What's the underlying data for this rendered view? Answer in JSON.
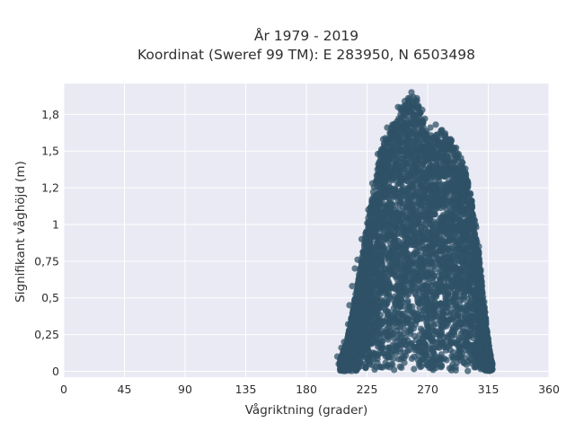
{
  "chart_data": {
    "type": "scatter",
    "title_lines": [
      "År 1979 - 2019",
      "Koordinat (Sweref 99 TM): E 283950, N 6503498"
    ],
    "xlabel": "Vågriktning (grader)",
    "ylabel": "Signifikant våghöjd (m)",
    "xlim": [
      0,
      360
    ],
    "ylim": [
      -0.04,
      1.96
    ],
    "x_ticks": [
      {
        "value": 0,
        "label": "0"
      },
      {
        "value": 45,
        "label": "45"
      },
      {
        "value": 90,
        "label": "90"
      },
      {
        "value": 135,
        "label": "135"
      },
      {
        "value": 180,
        "label": "180"
      },
      {
        "value": 225,
        "label": "225"
      },
      {
        "value": 270,
        "label": "270"
      },
      {
        "value": 315,
        "label": "315"
      },
      {
        "value": 360,
        "label": "360"
      }
    ],
    "y_ticks": [
      {
        "value": 0,
        "label": "0"
      },
      {
        "value": 0.25,
        "label": "0,25"
      },
      {
        "value": 0.5,
        "label": "0,5"
      },
      {
        "value": 0.75,
        "label": "0,75"
      },
      {
        "value": 1,
        "label": "1"
      },
      {
        "value": 1.25,
        "label": "1,2"
      },
      {
        "value": 1.5,
        "label": "1,5"
      },
      {
        "value": 1.75,
        "label": "1,8"
      }
    ],
    "grid": true,
    "legend": "none",
    "marker_color": "#2f5167",
    "plot_background": "#e9eaf3",
    "envelope": [
      {
        "direction": 205,
        "max_height": 0.08
      },
      {
        "direction": 210,
        "max_height": 0.2
      },
      {
        "direction": 215,
        "max_height": 0.45
      },
      {
        "direction": 220,
        "max_height": 0.72
      },
      {
        "direction": 225,
        "max_height": 1.0
      },
      {
        "direction": 230,
        "max_height": 1.25
      },
      {
        "direction": 235,
        "max_height": 1.5
      },
      {
        "direction": 240,
        "max_height": 1.62
      },
      {
        "direction": 245,
        "max_height": 1.7
      },
      {
        "direction": 250,
        "max_height": 1.8
      },
      {
        "direction": 255,
        "max_height": 1.86
      },
      {
        "direction": 258,
        "max_height": 1.88
      },
      {
        "direction": 262,
        "max_height": 1.85
      },
      {
        "direction": 265,
        "max_height": 1.75
      },
      {
        "direction": 270,
        "max_height": 1.62
      },
      {
        "direction": 275,
        "max_height": 1.6
      },
      {
        "direction": 280,
        "max_height": 1.65
      },
      {
        "direction": 285,
        "max_height": 1.6
      },
      {
        "direction": 290,
        "max_height": 1.55
      },
      {
        "direction": 295,
        "max_height": 1.45
      },
      {
        "direction": 300,
        "max_height": 1.3
      },
      {
        "direction": 305,
        "max_height": 1.05
      },
      {
        "direction": 310,
        "max_height": 0.65
      },
      {
        "direction": 315,
        "max_height": 0.2
      },
      {
        "direction": 318,
        "max_height": 0.05
      }
    ],
    "scattered_points": [
      {
        "direction": 203,
        "height": 0.1
      },
      {
        "direction": 204,
        "height": 0.05
      },
      {
        "direction": 206,
        "height": 0.16
      },
      {
        "direction": 208,
        "height": 0.2
      },
      {
        "direction": 211,
        "height": 0.32
      },
      {
        "direction": 212,
        "height": 0.45
      },
      {
        "direction": 214,
        "height": 0.58
      },
      {
        "direction": 216,
        "height": 0.7
      },
      {
        "direction": 218,
        "height": 0.76
      },
      {
        "direction": 221,
        "height": 0.9
      },
      {
        "direction": 226,
        "height": 1.1
      },
      {
        "direction": 229,
        "height": 1.28
      },
      {
        "direction": 233,
        "height": 1.48
      },
      {
        "direction": 237,
        "height": 1.58
      },
      {
        "direction": 240,
        "height": 1.66
      },
      {
        "direction": 248,
        "height": 1.8
      },
      {
        "direction": 253,
        "height": 1.84
      },
      {
        "direction": 258,
        "height": 1.9
      },
      {
        "direction": 262,
        "height": 1.86
      },
      {
        "direction": 266,
        "height": 1.78
      },
      {
        "direction": 268,
        "height": 1.72
      },
      {
        "direction": 272,
        "height": 1.66
      },
      {
        "direction": 276,
        "height": 1.68
      },
      {
        "direction": 280,
        "height": 1.64
      },
      {
        "direction": 283,
        "height": 1.62
      },
      {
        "direction": 287,
        "height": 1.58
      },
      {
        "direction": 290,
        "height": 1.52
      },
      {
        "direction": 293,
        "height": 1.48
      },
      {
        "direction": 295,
        "height": 1.4
      },
      {
        "direction": 298,
        "height": 1.38
      },
      {
        "direction": 300,
        "height": 1.2
      },
      {
        "direction": 303,
        "height": 1.12
      },
      {
        "direction": 306,
        "height": 0.98
      },
      {
        "direction": 308,
        "height": 0.85
      },
      {
        "direction": 310,
        "height": 0.6
      },
      {
        "direction": 312,
        "height": 0.4
      },
      {
        "direction": 315,
        "height": 0.22
      },
      {
        "direction": 316,
        "height": 0.08
      }
    ]
  }
}
